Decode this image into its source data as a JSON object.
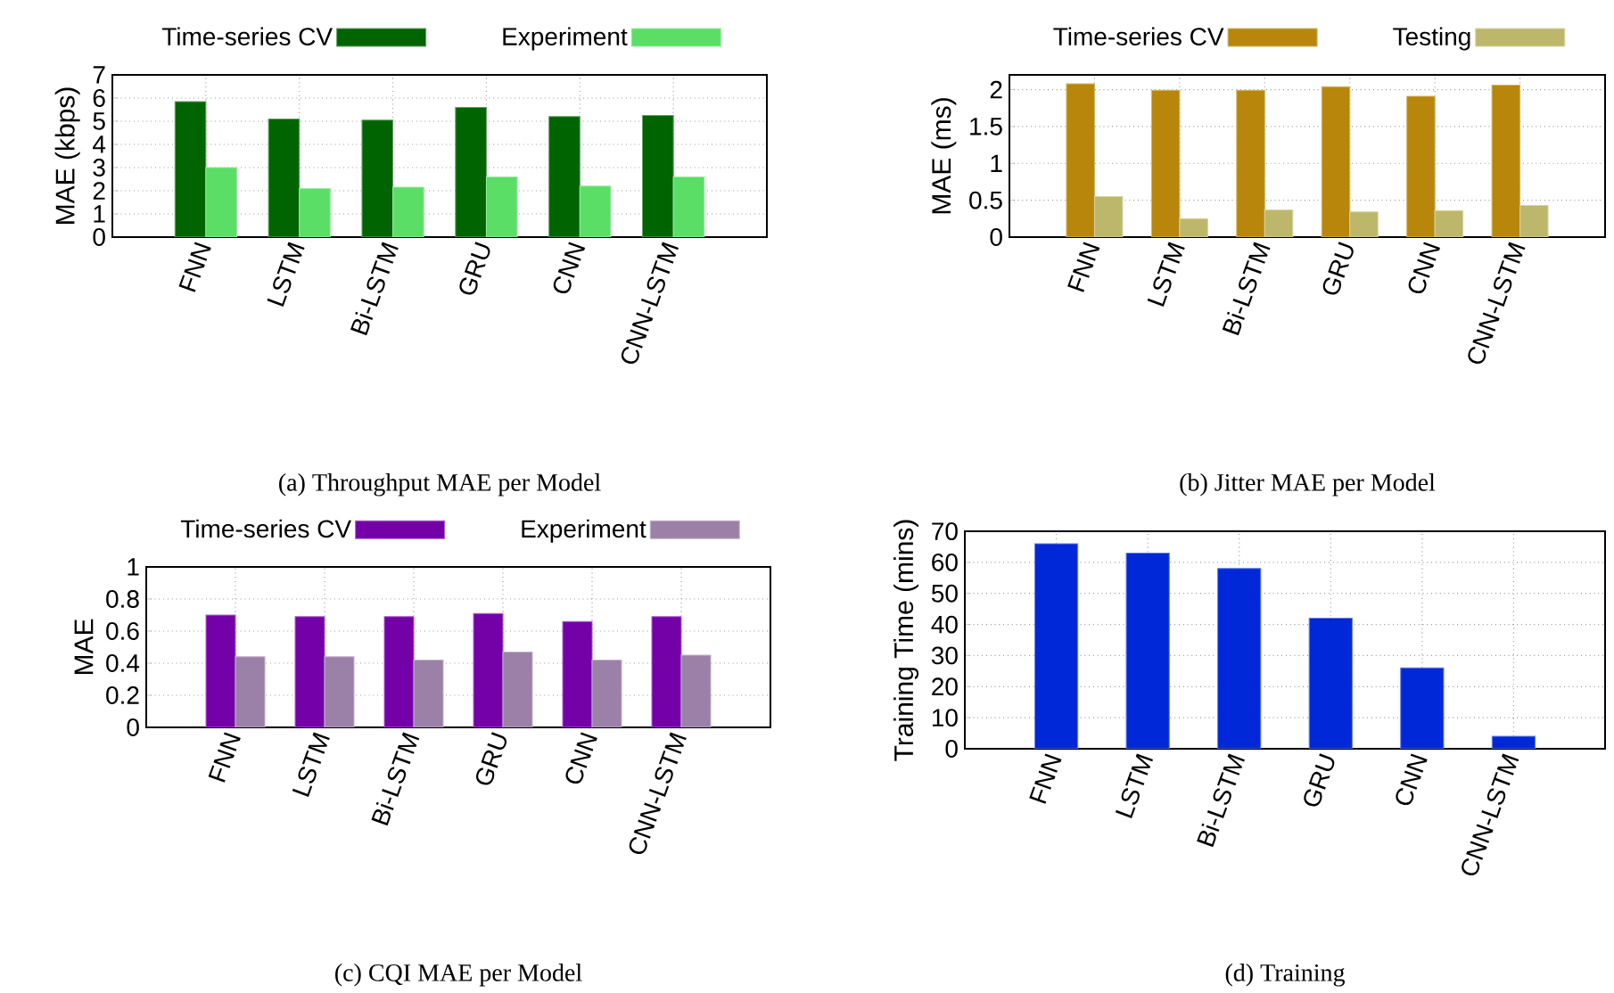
{
  "chart_data": [
    {
      "type": "bar",
      "title": "(a) Throughput MAE per Model",
      "ylabel": "MAE (kbps)",
      "categories": [
        "FNN",
        "LSTM",
        "Bi-LSTM",
        "GRU",
        "CNN",
        "CNN-LSTM"
      ],
      "series": [
        {
          "name": "Time-series CV",
          "color": "#006400",
          "values": [
            5.85,
            5.1,
            5.05,
            5.6,
            5.2,
            5.25
          ]
        },
        {
          "name": "Experiment",
          "color": "#5ade66",
          "values": [
            3.0,
            2.1,
            2.15,
            2.6,
            2.2,
            2.6
          ]
        }
      ],
      "ylim": [
        0,
        7
      ],
      "yticks": [
        0,
        1,
        2,
        3,
        4,
        5,
        6,
        7
      ],
      "grid": true,
      "legend": "top"
    },
    {
      "type": "bar",
      "title": "(b) Jitter MAE per Model",
      "ylabel": "MAE (ms)",
      "categories": [
        "FNN",
        "LSTM",
        "Bi-LSTM",
        "GRU",
        "CNN",
        "CNN-LSTM"
      ],
      "series": [
        {
          "name": "Time-series CV",
          "color": "#b8860b",
          "values": [
            2.08,
            1.99,
            1.99,
            2.04,
            1.91,
            2.06
          ]
        },
        {
          "name": "Testing",
          "color": "#bdb76b",
          "values": [
            0.55,
            0.25,
            0.37,
            0.34,
            0.36,
            0.43
          ]
        }
      ],
      "ylim": [
        0,
        2.2
      ],
      "yticks": [
        0,
        0.5,
        1,
        1.5,
        2
      ],
      "grid": true,
      "legend": "top"
    },
    {
      "type": "bar",
      "title": "(c) CQI MAE per Model",
      "ylabel": "MAE",
      "categories": [
        "FNN",
        "LSTM",
        "Bi-LSTM",
        "GRU",
        "CNN",
        "CNN-LSTM"
      ],
      "series": [
        {
          "name": "Time-series CV",
          "color": "#7400a8",
          "values": [
            0.7,
            0.69,
            0.69,
            0.71,
            0.66,
            0.69
          ]
        },
        {
          "name": "Experiment",
          "color": "#9b80a8",
          "values": [
            0.44,
            0.44,
            0.42,
            0.47,
            0.42,
            0.45
          ]
        }
      ],
      "ylim": [
        0,
        1
      ],
      "yticks": [
        0,
        0.2,
        0.4,
        0.6,
        0.8,
        1
      ],
      "grid": true,
      "legend": "top"
    },
    {
      "type": "bar",
      "title": "(d) Training",
      "ylabel": "Training Time (mins)",
      "categories": [
        "FNN",
        "LSTM",
        "Bi-LSTM",
        "GRU",
        "CNN",
        "CNN-LSTM"
      ],
      "series": [
        {
          "color": "#0028d8",
          "values": [
            66,
            63,
            58,
            42,
            26,
            4
          ]
        }
      ],
      "ylim": [
        0,
        70
      ],
      "yticks": [
        0,
        10,
        20,
        30,
        40,
        50,
        60,
        70
      ],
      "grid": true
    }
  ]
}
